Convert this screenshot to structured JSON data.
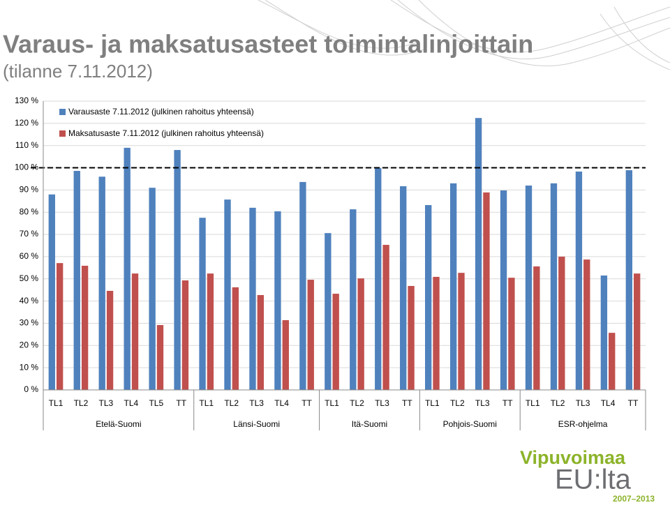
{
  "chart_data": {
    "type": "bar",
    "title": "Varaus- ja maksatusasteet toimintalinjoittain",
    "subtitle": "(tilanne 7.11.2012)",
    "groups": [
      {
        "name": "Etelä-Suomi",
        "categories": [
          "TL1",
          "TL2",
          "TL3",
          "TL4",
          "TL5",
          "TT"
        ]
      },
      {
        "name": "Länsi-Suomi",
        "categories": [
          "TL1",
          "TL2",
          "TL3",
          "TL4",
          "TT"
        ]
      },
      {
        "name": "Itä-Suomi",
        "categories": [
          "TL1",
          "TL2",
          "TL3",
          "TT"
        ]
      },
      {
        "name": "Pohjois-Suomi",
        "categories": [
          "TL1",
          "TL2",
          "TL3",
          "TT"
        ]
      },
      {
        "name": "ESR-ohjelma",
        "categories": [
          "TL1",
          "TL2",
          "TL3",
          "TL4",
          "TT"
        ]
      }
    ],
    "series": [
      {
        "name": "Varausaste 7.11.2012 (julkinen rahoitus yhteensä)",
        "color": "#4f81bd",
        "values": [
          88,
          98.6,
          96,
          109,
          91,
          108,
          77.5,
          85.7,
          82,
          80.4,
          93.6,
          70.6,
          81.3,
          99.8,
          91.7,
          83.2,
          93,
          122.4,
          89.8,
          92,
          93,
          98.3,
          51.5,
          98.9
        ]
      },
      {
        "name": "Maksatusaste 7.11.2012 (julkinen rahoitus yhteensä)",
        "color": "#c0504d",
        "values": [
          57.1,
          55.9,
          44.6,
          52.4,
          29.2,
          49.3,
          52.4,
          46.2,
          42.7,
          31.4,
          49.6,
          43.3,
          50.2,
          65.3,
          46.8,
          50.9,
          52.7,
          88.9,
          50.5,
          55.6,
          60,
          58.7,
          25.7,
          52.4
        ]
      }
    ],
    "reference_line": 100,
    "ylim": [
      0,
      130
    ],
    "yticks": [
      {
        "value": 0,
        "label": "0 %"
      },
      {
        "value": 10,
        "label": "10 %"
      },
      {
        "value": 20,
        "label": "20 %"
      },
      {
        "value": 30,
        "label": "30 %"
      },
      {
        "value": 40,
        "label": "40 %"
      },
      {
        "value": 50,
        "label": "50 %"
      },
      {
        "value": 60,
        "label": "60 %"
      },
      {
        "value": 70,
        "label": "70 %"
      },
      {
        "value": 80,
        "label": "80 %"
      },
      {
        "value": 90,
        "label": "90 %"
      },
      {
        "value": 100,
        "label": "100 %"
      },
      {
        "value": 110,
        "label": "110 %"
      },
      {
        "value": 120,
        "label": "120 %"
      },
      {
        "value": 130,
        "label": "130 %"
      }
    ],
    "grid": true,
    "legend": "top-left"
  },
  "logo": {
    "name": "Vipuvoimaa",
    "text": "EU:lta",
    "years": "2007–2013"
  }
}
